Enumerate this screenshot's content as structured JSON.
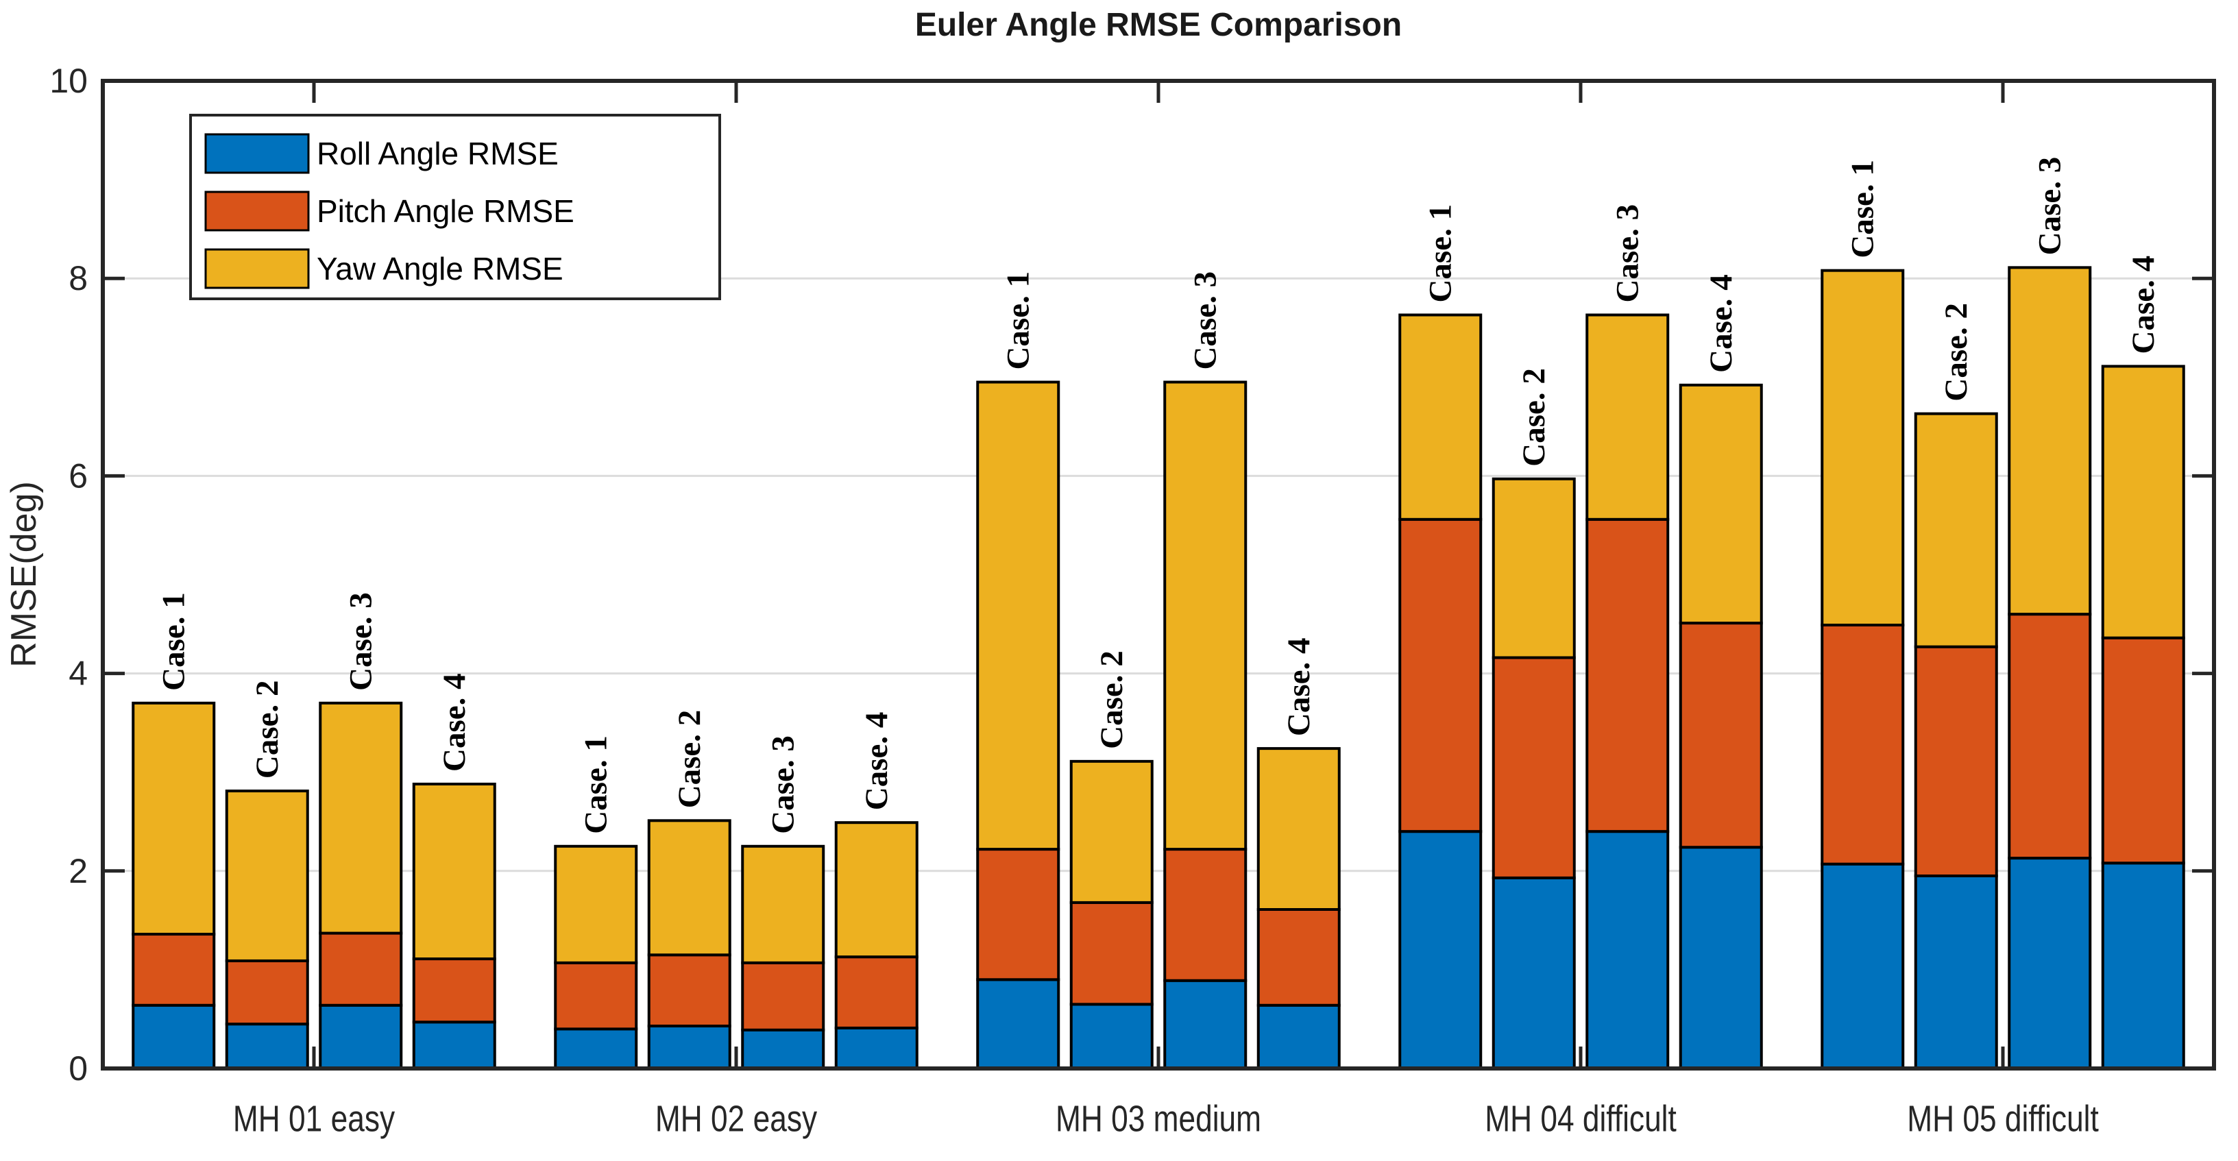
{
  "chart_data": {
    "type": "bar",
    "stacked": true,
    "title": "Euler Angle RMSE Comparison",
    "xlabel": "",
    "ylabel": "RMSE(deg)",
    "ylim": [
      0,
      10
    ],
    "yticks": [
      0,
      2,
      4,
      6,
      8,
      10
    ],
    "grid": "horizontal-light",
    "legend_position": "top-left-inside",
    "categories": [
      "MH 01 easy",
      "MH 02 easy",
      "MH 03 medium",
      "MH 04 difficult",
      "MH 05 difficult"
    ],
    "bar_labels": [
      "Case. 1",
      "Case. 2",
      "Case. 3",
      "Case. 4"
    ],
    "series": [
      {
        "name": "Roll Angle RMSE",
        "color": "#0072BD",
        "values": [
          [
            0.64,
            0.45,
            0.64,
            0.47
          ],
          [
            0.4,
            0.43,
            0.39,
            0.41
          ],
          [
            0.9,
            0.65,
            0.89,
            0.64
          ],
          [
            2.4,
            1.93,
            2.4,
            2.24
          ],
          [
            2.07,
            1.95,
            2.13,
            2.08
          ]
        ]
      },
      {
        "name": "Pitch Angle RMSE",
        "color": "#D95319",
        "values": [
          [
            0.72,
            0.64,
            0.73,
            0.64
          ],
          [
            0.67,
            0.72,
            0.68,
            0.72
          ],
          [
            1.32,
            1.03,
            1.33,
            0.97
          ],
          [
            3.16,
            2.23,
            3.16,
            2.27
          ],
          [
            2.42,
            2.32,
            2.47,
            2.28
          ]
        ]
      },
      {
        "name": "Yaw Angle RMSE",
        "color": "#EDB120",
        "values": [
          [
            2.34,
            1.72,
            2.33,
            1.77
          ],
          [
            1.18,
            1.36,
            1.18,
            1.36
          ],
          [
            4.73,
            1.43,
            4.73,
            1.63
          ],
          [
            2.07,
            1.81,
            2.07,
            2.41
          ],
          [
            3.59,
            2.36,
            3.51,
            2.75
          ]
        ]
      }
    ],
    "totals": [
      [
        3.7,
        2.81,
        3.7,
        2.88
      ],
      [
        2.25,
        2.51,
        2.25,
        2.49
      ],
      [
        6.95,
        3.11,
        6.95,
        3.24
      ],
      [
        7.63,
        5.97,
        7.63,
        6.92
      ],
      [
        8.08,
        6.63,
        8.11,
        7.11
      ]
    ]
  }
}
